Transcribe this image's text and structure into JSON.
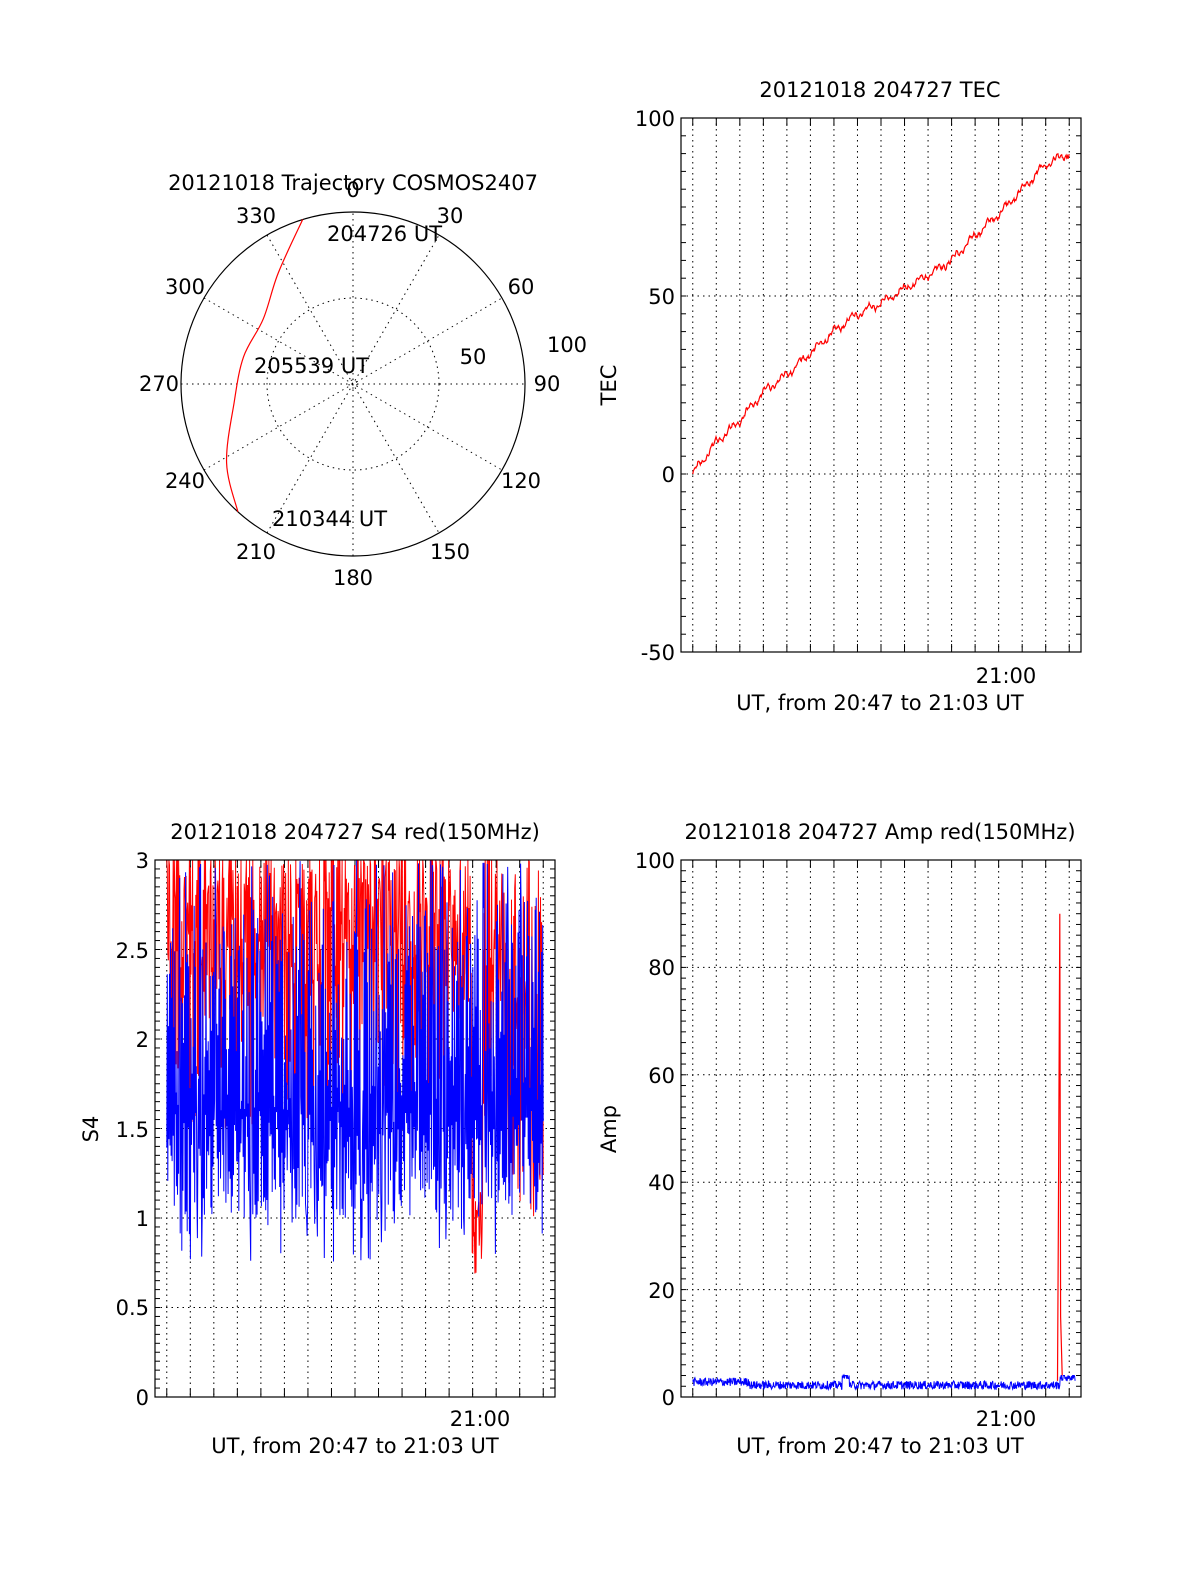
{
  "colors": {
    "red": "#ff0000",
    "blue": "#0000ff",
    "axes": "#000000",
    "background": "#ffffff"
  },
  "chart_data": [
    {
      "id": "trajectory",
      "type": "polar",
      "title": "20121018 Trajectory COSMOS2407",
      "angle_labels": [
        "0",
        "30",
        "60",
        "90",
        "120",
        "150",
        "180",
        "210",
        "240",
        "270",
        "300",
        "330"
      ],
      "radius_labels": [
        "50",
        "100"
      ],
      "radius_range": [
        0,
        90
      ],
      "track": {
        "color": "#ff0000",
        "points": [
          {
            "azimuth": 343,
            "zenith": 90
          },
          {
            "azimuth": 326,
            "zenith": 70
          },
          {
            "azimuth": 306,
            "zenith": 58
          },
          {
            "azimuth": 284,
            "zenith": 59
          },
          {
            "azimuth": 261,
            "zenith": 63
          },
          {
            "azimuth": 238,
            "zenith": 78
          },
          {
            "azimuth": 222,
            "zenith": 90
          }
        ]
      },
      "annotations": [
        "204726 UT",
        "205539 UT",
        "210344 UT"
      ],
      "grid": true
    },
    {
      "id": "tec",
      "type": "line",
      "title": "20121018 204727 TEC",
      "ylabel": "TEC",
      "xlabel": "UT, from 20:47 to 21:03 UT",
      "xlim": [
        "20:46:30",
        "21:03:30"
      ],
      "ylim": [
        -50,
        100
      ],
      "yticks": [
        "100",
        "50",
        "0",
        "-50"
      ],
      "xticks": [
        "21:00"
      ],
      "grid": true,
      "series": [
        {
          "color": "#ff0000",
          "x": [
            "20:47:00",
            "20:48:00",
            "20:49:00",
            "20:50:00",
            "20:51:00",
            "20:52:00",
            "20:53:00",
            "20:54:00",
            "20:55:00",
            "20:56:00",
            "20:57:00",
            "20:58:00",
            "20:59:00",
            "21:00:00",
            "21:01:00",
            "21:02:00",
            "21:03:00"
          ],
          "values": [
            0,
            9,
            15,
            23,
            28,
            34,
            40,
            45,
            48,
            52,
            56,
            60,
            67,
            73,
            80,
            87,
            90
          ]
        }
      ]
    },
    {
      "id": "s4",
      "type": "line",
      "title": "20121018 204727 S4 red(150MHz)",
      "ylabel": "S4",
      "xlabel": "UT, from 20:47 to 21:03 UT",
      "xlim": [
        "20:46:30",
        "21:03:30"
      ],
      "ylim": [
        0,
        3
      ],
      "yticks": [
        "3",
        "2.5",
        "2",
        "1.5",
        "1",
        "0.5",
        "0"
      ],
      "xticks": [
        "21:00"
      ],
      "grid": true,
      "series": [
        {
          "color": "#ff0000",
          "value_range": [
            0.68,
            3.0
          ]
        },
        {
          "color": "#0000ff",
          "value_range": [
            0.75,
            3.0
          ]
        }
      ]
    },
    {
      "id": "amp",
      "type": "line",
      "title": "20121018 204727 Amp red(150MHz)",
      "ylabel": "Amp",
      "xlabel": "UT, from 20:47 to 21:03 UT",
      "xlim": [
        "20:46:30",
        "21:03:30"
      ],
      "ylim": [
        0,
        100
      ],
      "yticks": [
        "100",
        "80",
        "60",
        "40",
        "20",
        "0"
      ],
      "xticks": [
        "21:00"
      ],
      "grid": true,
      "series": [
        {
          "color": "#ff0000",
          "x": [
            "21:02:30",
            "21:02:36",
            "21:02:42"
          ],
          "values": [
            3,
            90,
            4
          ],
          "peak": 90
        },
        {
          "color": "#0000ff",
          "value_range": [
            1,
            4
          ]
        }
      ]
    }
  ]
}
